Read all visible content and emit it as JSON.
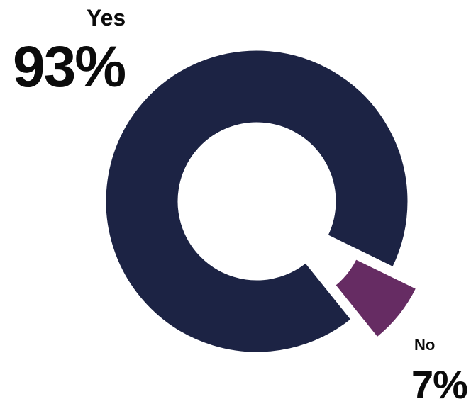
{
  "chart_data": {
    "type": "pie",
    "style": "donut",
    "categories": [
      "Yes",
      "No"
    ],
    "values": [
      93,
      7
    ],
    "value_labels": [
      "93%",
      "7%"
    ],
    "colors": [
      "#1c2344",
      "#662c63"
    ],
    "exploded": [
      "No"
    ]
  }
}
